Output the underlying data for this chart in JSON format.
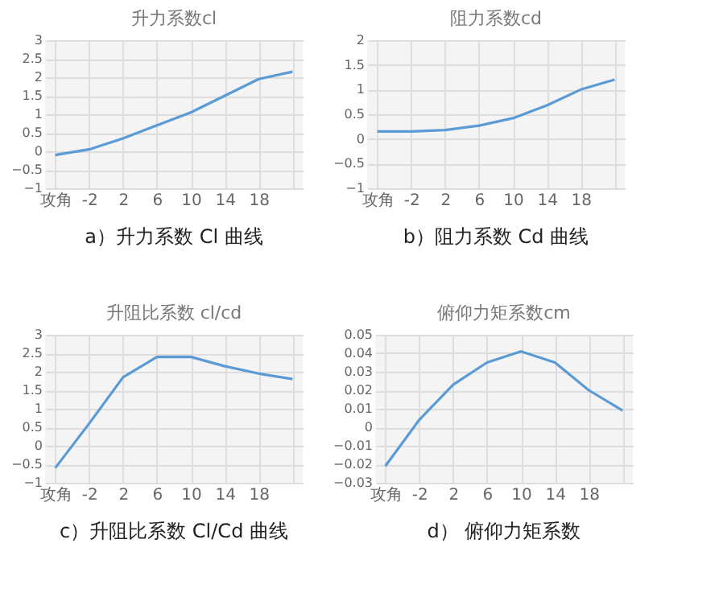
{
  "chart_data": [
    {
      "type": "line",
      "title": "升力系数cl",
      "categories": [
        "攻角",
        "-2",
        "2",
        "6",
        "10",
        "14",
        "18",
        null
      ],
      "values": [
        -0.1,
        0.05,
        0.35,
        0.7,
        1.05,
        1.5,
        1.95,
        2.15
      ],
      "color": "#5b9bd5",
      "ylim": [
        -1,
        3
      ],
      "yticks": [
        -1,
        -0.5,
        0,
        0.5,
        1,
        1.5,
        2,
        2.5,
        3
      ],
      "grid": true,
      "annotations": [
        "a）升力系数 Cl 曲线"
      ]
    },
    {
      "type": "line",
      "title": "阻力系数cd",
      "categories": [
        "攻角",
        "-2",
        "2",
        "6",
        "10",
        "14",
        "18",
        null
      ],
      "values": [
        0.15,
        0.15,
        0.18,
        0.27,
        0.42,
        0.68,
        1.0,
        1.2
      ],
      "color": "#5b9bd5",
      "ylim": [
        -1,
        2
      ],
      "yticks": [
        -1,
        -0.5,
        0,
        0.5,
        1,
        1.5,
        2
      ],
      "grid": true,
      "annotations": [
        "b）阻力系数 Cd 曲线"
      ]
    },
    {
      "type": "line",
      "title": "升阻比系数 cl/cd",
      "categories": [
        "攻角",
        "-2",
        "2",
        "6",
        "10",
        "14",
        "18",
        null
      ],
      "values": [
        -0.6,
        0.6,
        1.85,
        2.4,
        2.4,
        2.15,
        1.95,
        1.8
      ],
      "color": "#5b9bd5",
      "ylim": [
        -1,
        3
      ],
      "yticks": [
        -1,
        -0.5,
        0,
        0.5,
        1,
        1.5,
        2,
        2.5,
        3
      ],
      "grid": true,
      "annotations": [
        "c）升阻比系数 Cl/Cd 曲线"
      ]
    },
    {
      "type": "line",
      "title": "俯仰力矩系数cm",
      "categories": [
        "攻角",
        "-2",
        "2",
        "6",
        "10",
        "14",
        "18",
        null
      ],
      "values": [
        -0.021,
        0.004,
        0.023,
        0.035,
        0.041,
        0.035,
        0.02,
        0.009
      ],
      "color": "#5b9bd5",
      "ylim": [
        -0.03,
        0.05
      ],
      "yticks": [
        -0.03,
        -0.02,
        -0.01,
        0,
        0.01,
        0.02,
        0.03,
        0.04,
        0.05
      ],
      "grid": true,
      "annotations": [
        "d） 俯仰力矩系数"
      ]
    }
  ]
}
